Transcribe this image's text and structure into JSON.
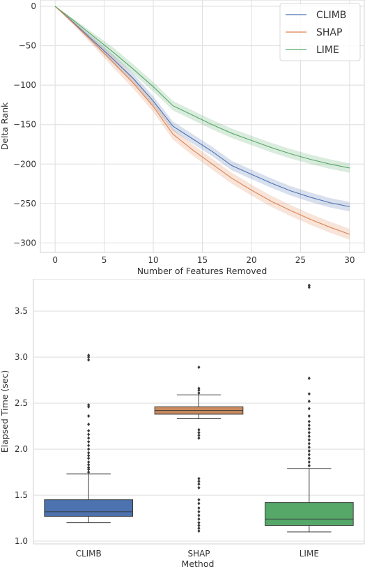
{
  "chart_data": [
    {
      "type": "line",
      "xlabel": "Number of Features Removed",
      "ylabel": "Delta Rank",
      "xlim": [
        -1.5,
        31.5
      ],
      "ylim": [
        -312,
        8
      ],
      "x_ticks": [
        "0",
        "5",
        "10",
        "15",
        "20",
        "25",
        "30"
      ],
      "y_ticks": [
        "0",
        "−50",
        "−100",
        "−150",
        "−200",
        "−250",
        "−300"
      ],
      "x_tick_values": [
        0,
        5,
        10,
        15,
        20,
        25,
        30
      ],
      "y_tick_values": [
        0,
        -50,
        -100,
        -150,
        -200,
        -250,
        -300
      ],
      "grid": true,
      "legend_position": "top-right",
      "x": [
        0,
        2,
        4,
        6,
        8,
        10,
        12,
        14,
        16,
        18,
        20,
        22,
        24,
        26,
        28,
        30
      ],
      "series": [
        {
          "name": "CLIMB",
          "color": "#4c72b0",
          "values": [
            0,
            -22,
            -45,
            -68,
            -92,
            -120,
            -152,
            -168,
            -184,
            -202,
            -213,
            -224,
            -234,
            -242,
            -249,
            -254
          ],
          "band": 6
        },
        {
          "name": "SHAP",
          "color": "#dd8452",
          "values": [
            0,
            -23,
            -47,
            -72,
            -98,
            -127,
            -162,
            -182,
            -200,
            -218,
            -233,
            -247,
            -259,
            -270,
            -280,
            -289
          ],
          "band": 7
        },
        {
          "name": "LIME",
          "color": "#55a868",
          "values": [
            0,
            -19,
            -39,
            -59,
            -80,
            -102,
            -126,
            -138,
            -150,
            -161,
            -170,
            -179,
            -187,
            -194,
            -200,
            -205
          ],
          "band": 6
        }
      ]
    },
    {
      "type": "box",
      "xlabel": "Method",
      "ylabel": "Elapsed Time (sec)",
      "ylim": [
        0.97,
        3.85
      ],
      "y_ticks": [
        "1.0",
        "1.5",
        "2.0",
        "2.5",
        "3.0",
        "3.5"
      ],
      "y_tick_values": [
        1.0,
        1.5,
        2.0,
        2.5,
        3.0,
        3.5
      ],
      "grid": true,
      "categories": [
        "CLIMB",
        "SHAP",
        "LIME"
      ],
      "boxes": [
        {
          "name": "CLIMB",
          "color": "#4c72b0",
          "whisker_low": 1.2,
          "q1": 1.27,
          "median": 1.32,
          "q3": 1.45,
          "whisker_high": 1.73,
          "outliers": [
            1.75,
            1.78,
            1.8,
            1.83,
            1.86,
            1.9,
            1.93,
            1.96,
            2.0,
            2.04,
            2.08,
            2.12,
            2.16,
            2.2,
            2.27,
            2.36,
            2.46,
            2.48,
            2.97,
            3.0,
            3.02
          ]
        },
        {
          "name": "SHAP",
          "color": "#c98a5f",
          "whisker_low": 2.33,
          "q1": 2.38,
          "median": 2.42,
          "q3": 2.46,
          "whisker_high": 2.59,
          "outliers": [
            1.11,
            1.14,
            1.17,
            1.2,
            1.24,
            1.28,
            1.32,
            1.36,
            1.41,
            1.45,
            1.58,
            1.62,
            1.65,
            1.68,
            2.12,
            2.15,
            2.18,
            2.21,
            2.61,
            2.64,
            2.66,
            2.89
          ]
        },
        {
          "name": "LIME",
          "color": "#55a868",
          "whisker_low": 1.1,
          "q1": 1.17,
          "median": 1.24,
          "q3": 1.42,
          "whisker_high": 1.79,
          "outliers": [
            1.82,
            1.86,
            1.9,
            1.94,
            1.98,
            2.02,
            2.06,
            2.1,
            2.14,
            2.18,
            2.22,
            2.26,
            2.3,
            2.36,
            2.44,
            2.52,
            2.6,
            2.77,
            3.76,
            3.78
          ]
        }
      ]
    }
  ]
}
